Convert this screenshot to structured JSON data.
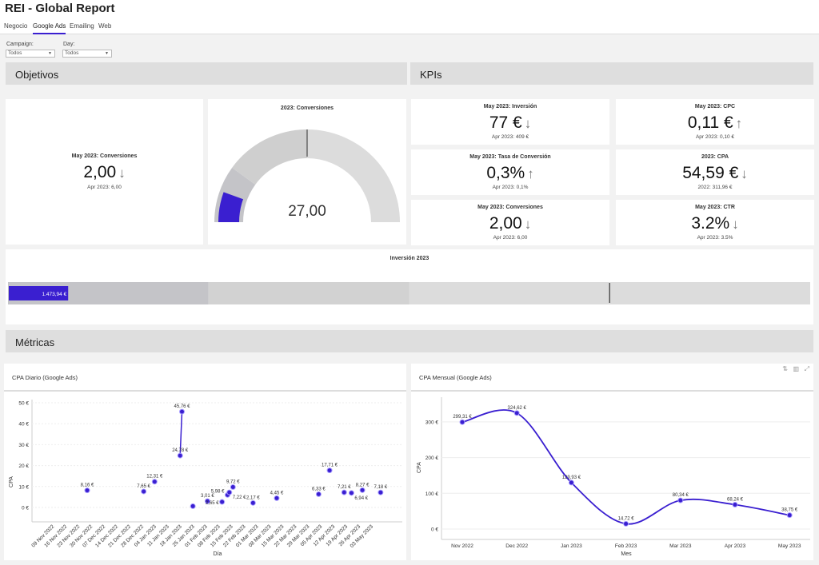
{
  "app": {
    "title": "REI - Global Report"
  },
  "tabs": [
    {
      "label": "Negocio"
    },
    {
      "label": "Google Ads",
      "active": true
    },
    {
      "label": "Emailing"
    },
    {
      "label": "Web"
    }
  ],
  "filters": [
    {
      "label": "Campaign:",
      "value": "Todos"
    },
    {
      "label": "Day:",
      "value": "Todos"
    }
  ],
  "sections": {
    "objetivos": "Objetivos",
    "kpis": "KPIs",
    "metricas": "Métricas"
  },
  "objetivos": {
    "conv_card": {
      "title": "May 2023: Conversiones",
      "value": "2,00",
      "trend": "down",
      "sub": "Apr 2023: 6,00"
    },
    "gauge": {
      "title": "2023: Conversiones",
      "value": "27,00",
      "fill_fraction": 0.11,
      "bands": [
        0.2,
        0.5,
        1.0
      ],
      "target_fraction": 0.5
    },
    "bullet": {
      "title": "Inversión 2023",
      "value_label": "1.473,94 €",
      "fill_fraction": 0.074,
      "bands": [
        0.25,
        0.5,
        1.0
      ],
      "target_fraction": 0.75
    }
  },
  "kpis": [
    {
      "title": "May 2023: Inversión",
      "value": "77 €",
      "trend": "down",
      "sub": "Apr 2023: 409 €"
    },
    {
      "title": "May 2023: CPC",
      "value": "0,11 €",
      "trend": "up",
      "sub": "Apr 2023: 0,10 €"
    },
    {
      "title": "May 2023: Tasa de Conversión",
      "value": "0,3%",
      "trend": "up",
      "sub": "Apr 2023: 0,1%"
    },
    {
      "title": "2023: CPA",
      "value": "54,59 €",
      "trend": "down",
      "sub": "2022: 311,96 €"
    },
    {
      "title": "May 2023: Conversiones",
      "value": "2,00",
      "trend": "down",
      "sub": "Apr 2023: 6,00"
    },
    {
      "title": "May 2023: CTR",
      "value": "3.2%",
      "trend": "down",
      "sub": "Apr 2023: 3.5%"
    }
  ],
  "icons": {
    "trend_down": "↓",
    "trend_up": "↑",
    "chart_tools": [
      "sort-icon",
      "bar-chart-icon",
      "expand-icon"
    ]
  },
  "colors": {
    "accent": "#3a1fd0",
    "band_dark": "#c4c4c8",
    "band_light": "#dcdcdc"
  },
  "chart_data": [
    {
      "type": "scatter",
      "title": "CPA Diario (Google Ads)",
      "xlabel": "Día",
      "ylabel": "CPA",
      "ylim": [
        -7,
        53
      ],
      "grid": true,
      "yticks": [
        "0 €",
        "10 €",
        "20 €",
        "30 €",
        "40 €",
        "50 €"
      ],
      "ytick_values": [
        0,
        10,
        20,
        30,
        40,
        50
      ],
      "xticks": [
        "09 Nov 2022",
        "16 Nov 2022",
        "23 Nov 2022",
        "30 Nov 2022",
        "07 Dec 2022",
        "14 Dec 2022",
        "21 Dec 2022",
        "28 Dec 2022",
        "04 Jan 2023",
        "11 Jan 2023",
        "18 Jan 2023",
        "25 Jan 2023",
        "01 Feb 2023",
        "08 Feb 2023",
        "15 Feb 2023",
        "22 Feb 2023",
        "01 Mar 2023",
        "08 Mar 2023",
        "15 Mar 2023",
        "22 Mar 2023",
        "29 Mar 2023",
        "05 Apr 2023",
        "12 Apr 2023",
        "19 Apr 2023",
        "26 Apr 2023",
        "03 May 2023"
      ],
      "points": [
        {
          "x": "2022-11-27",
          "y": 8.16,
          "label": "8,16 €"
        },
        {
          "x": "2022-12-28",
          "y": 7.65,
          "label": "7,65 €"
        },
        {
          "x": "2023-01-03",
          "y": 12.31,
          "label": "12,31 €"
        },
        {
          "x": "2023-01-17",
          "y": 24.78,
          "label": "24,78 €"
        },
        {
          "x": "2023-01-18",
          "y": 45.76,
          "label": "45,76 €"
        },
        {
          "x": "2023-01-24",
          "y": 0.6,
          "label": ""
        },
        {
          "x": "2023-02-01",
          "y": 3.01,
          "label": "3,01 €"
        },
        {
          "x": "2023-02-09",
          "y": 2.65,
          "label": "2,65 €"
        },
        {
          "x": "2023-02-12",
          "y": 5.98,
          "label": "5,98 €"
        },
        {
          "x": "2023-02-13",
          "y": 7.22,
          "label": "7,22 €"
        },
        {
          "x": "2023-02-15",
          "y": 9.72,
          "label": "9,72 €"
        },
        {
          "x": "2023-02-26",
          "y": 2.17,
          "label": "2,17 €"
        },
        {
          "x": "2023-03-11",
          "y": 4.45,
          "label": "4,45 €"
        },
        {
          "x": "2023-04-03",
          "y": 6.33,
          "label": "6,33 €"
        },
        {
          "x": "2023-04-09",
          "y": 17.71,
          "label": "17,71 €"
        },
        {
          "x": "2023-04-17",
          "y": 7.21,
          "label": "7,21 €"
        },
        {
          "x": "2023-04-21",
          "y": 6.94,
          "label": "6,94 €"
        },
        {
          "x": "2023-04-27",
          "y": 8.27,
          "label": "8,27 €"
        },
        {
          "x": "2023-05-07",
          "y": 7.18,
          "label": "7,18 €"
        }
      ]
    },
    {
      "type": "line",
      "title": "CPA Mensual (Google Ads)",
      "xlabel": "Mes",
      "ylabel": "CPA",
      "ylim": [
        -30,
        360
      ],
      "grid": true,
      "yticks": [
        "0 €",
        "100 €",
        "200 €",
        "300 €"
      ],
      "ytick_values": [
        0,
        100,
        200,
        300
      ],
      "categories": [
        "Nov 2022",
        "Dec 2022",
        "Jan 2023",
        "Feb 2023",
        "Mar 2023",
        "Apr 2023",
        "May 2023"
      ],
      "values": [
        299.31,
        324.62,
        129.93,
        14.72,
        80.34,
        68.24,
        38.75
      ],
      "labels": [
        "299,31 €",
        "324,62 €",
        "129,93 €",
        "14,72 €",
        "80,34 €",
        "68,24 €",
        "38,75 €"
      ]
    }
  ]
}
